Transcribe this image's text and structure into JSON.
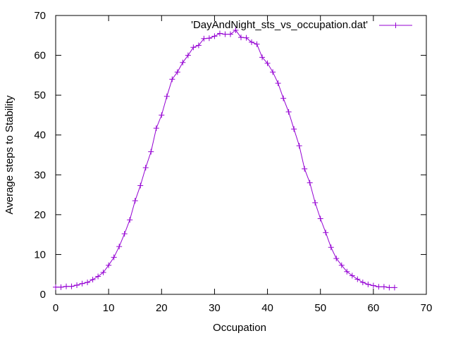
{
  "chart_data": {
    "type": "line",
    "xlabel": "Occupation",
    "ylabel": "Average steps to Stability",
    "xlim": [
      0,
      70
    ],
    "ylim": [
      0,
      70
    ],
    "xticks": [
      0,
      10,
      20,
      30,
      40,
      50,
      60,
      70
    ],
    "yticks": [
      0,
      10,
      20,
      30,
      40,
      50,
      60,
      70
    ],
    "legend_position": "top-right",
    "grid": false,
    "marker": "plus",
    "series": [
      {
        "name": "'DayAndNight_sts_vs_occupation.dat'",
        "color": "#9400d3",
        "x": [
          0,
          1,
          2,
          3,
          4,
          5,
          6,
          7,
          8,
          9,
          10,
          11,
          12,
          13,
          14,
          15,
          16,
          17,
          18,
          19,
          20,
          21,
          22,
          23,
          24,
          25,
          26,
          27,
          28,
          29,
          30,
          31,
          32,
          33,
          34,
          35,
          36,
          37,
          38,
          39,
          40,
          41,
          42,
          43,
          44,
          45,
          46,
          47,
          48,
          49,
          50,
          51,
          52,
          53,
          54,
          55,
          56,
          57,
          58,
          59,
          60,
          61,
          62,
          63,
          64
        ],
        "y": [
          1.8,
          1.8,
          2.0,
          2.0,
          2.3,
          2.7,
          3.0,
          3.7,
          4.5,
          5.5,
          7.3,
          9.3,
          12.0,
          15.2,
          18.7,
          23.5,
          27.3,
          31.8,
          35.8,
          41.7,
          45.0,
          49.7,
          54.0,
          55.8,
          58.2,
          60.0,
          62.0,
          62.5,
          64.2,
          64.3,
          64.8,
          65.5,
          65.3,
          65.3,
          66.3,
          64.5,
          64.4,
          63.3,
          62.8,
          59.5,
          58.0,
          55.8,
          53.0,
          49.2,
          45.8,
          41.5,
          37.3,
          31.5,
          28.0,
          23.0,
          19.0,
          15.5,
          11.8,
          9.0,
          7.3,
          5.7,
          4.7,
          3.8,
          3.0,
          2.5,
          2.2,
          1.9,
          1.9,
          1.7,
          1.7
        ]
      }
    ]
  }
}
